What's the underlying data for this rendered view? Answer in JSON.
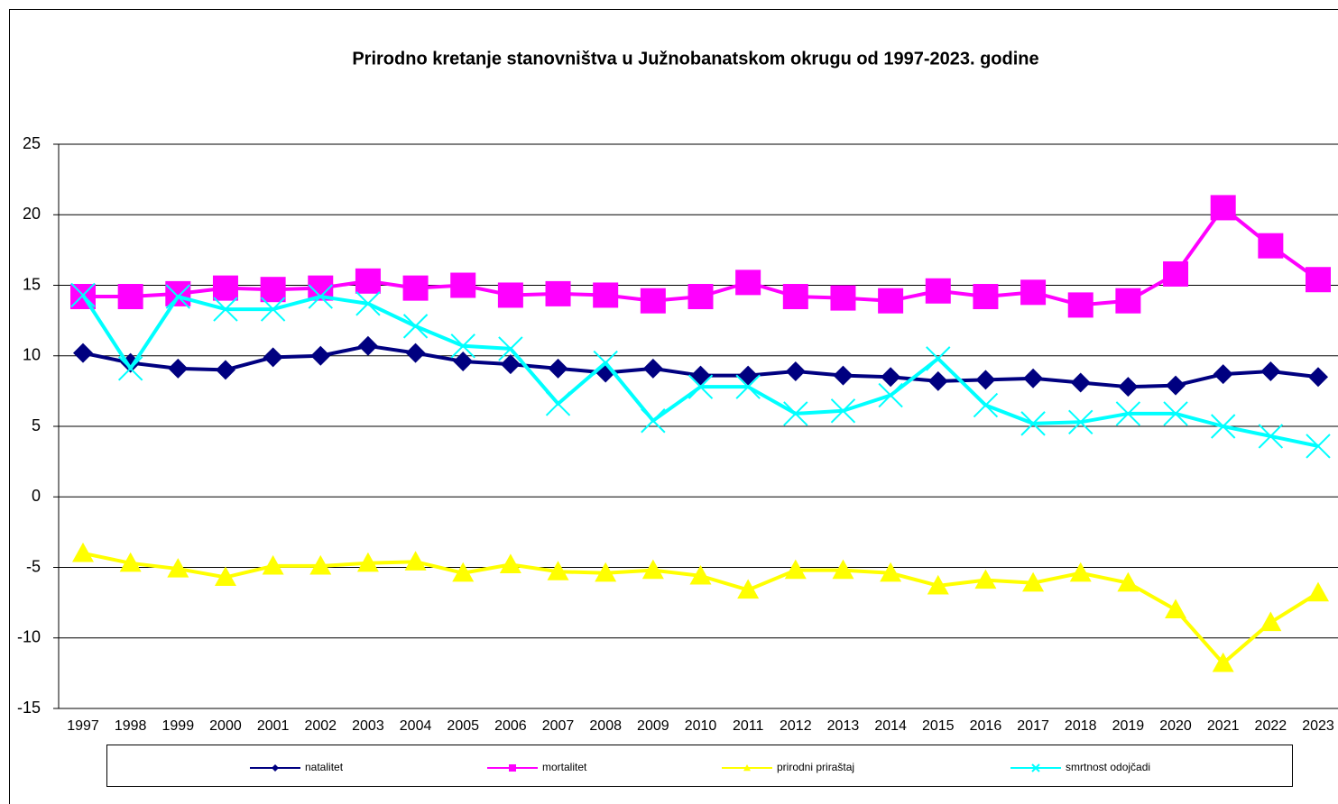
{
  "chart_data": {
    "type": "line",
    "title": "Prirodno kretanje stanovništva u Južnobanatskom okrugu od 1997-2023. godine",
    "categories": [
      "1997",
      "1998",
      "1999",
      "2000",
      "2001",
      "2002",
      "2003",
      "2004",
      "2005",
      "2006",
      "2007",
      "2008",
      "2009",
      "2010",
      "2011",
      "2012",
      "2013",
      "2014",
      "2015",
      "2016",
      "2017",
      "2018",
      "2019",
      "2020",
      "2021",
      "2022",
      "2023"
    ],
    "series": [
      {
        "name": "natalitet",
        "color": "#000080",
        "marker": "diamond",
        "values": [
          10.2,
          9.5,
          9.1,
          9.0,
          9.9,
          10.0,
          10.7,
          10.2,
          9.6,
          9.4,
          9.1,
          8.8,
          9.1,
          8.6,
          8.6,
          8.9,
          8.6,
          8.5,
          8.2,
          8.3,
          8.4,
          8.1,
          7.8,
          7.9,
          8.7,
          8.9,
          8.5
        ]
      },
      {
        "name": "mortalitet",
        "color": "#ff00ff",
        "marker": "square",
        "values": [
          14.2,
          14.2,
          14.4,
          14.8,
          14.7,
          14.8,
          15.3,
          14.8,
          15.0,
          14.3,
          14.4,
          14.3,
          13.9,
          14.2,
          15.2,
          14.2,
          14.1,
          13.9,
          14.6,
          14.2,
          14.5,
          13.6,
          13.9,
          15.8,
          20.5,
          17.8,
          15.4
        ]
      },
      {
        "name": "prirodni priraštaj",
        "color": "#ffff00",
        "marker": "triangle",
        "values": [
          -4.0,
          -4.7,
          -5.1,
          -5.7,
          -4.9,
          -4.9,
          -4.7,
          -4.6,
          -5.4,
          -4.8,
          -5.3,
          -5.4,
          -5.2,
          -5.6,
          -6.6,
          -5.2,
          -5.2,
          -5.4,
          -6.3,
          -5.9,
          -6.1,
          -5.4,
          -6.1,
          -8.0,
          -11.8,
          -8.9,
          -6.8
        ]
      },
      {
        "name": "smrtnost odojčadi",
        "color": "#00ffff",
        "marker": "x",
        "values": [
          14.3,
          9.1,
          14.2,
          13.3,
          13.3,
          14.2,
          13.7,
          12.1,
          10.7,
          10.5,
          6.6,
          9.5,
          5.4,
          7.8,
          7.8,
          5.9,
          6.1,
          7.2,
          9.8,
          6.5,
          5.2,
          5.3,
          5.9,
          5.9,
          5.0,
          4.3,
          3.6
        ]
      }
    ],
    "ylim": [
      -15,
      25
    ],
    "yticks": [
      -15,
      -10,
      -5,
      0,
      5,
      10,
      15,
      20,
      25
    ],
    "grid": true,
    "legend": "bottom"
  }
}
